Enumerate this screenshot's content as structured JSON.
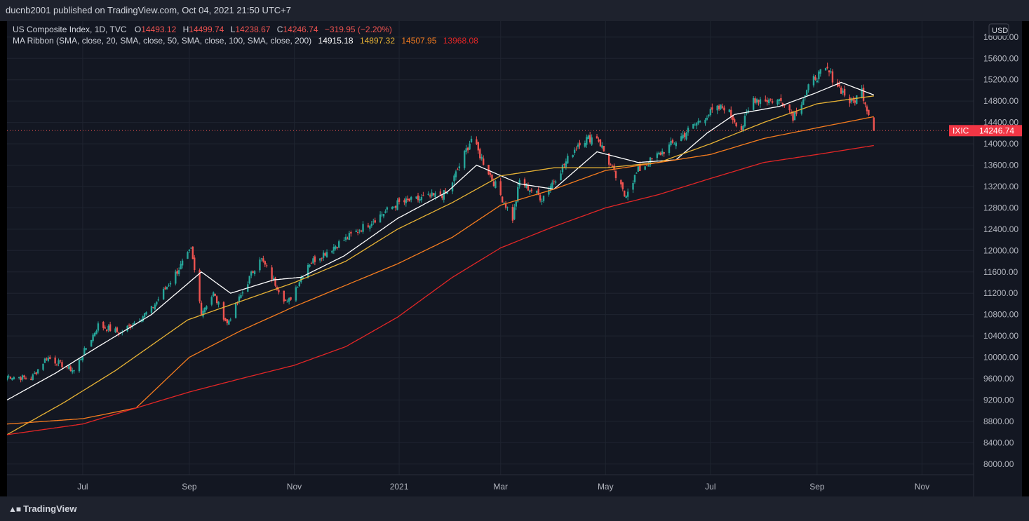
{
  "header": {
    "published": "ducnb2001 published on TradingView.com, Oct 04, 2021 21:50 UTC+7"
  },
  "footer": {
    "brand": "TradingView"
  },
  "legend": {
    "symbol": "US Composite Index, 1D, TVC",
    "o_label": "O",
    "o": "14493.12",
    "h_label": "H",
    "h": "14499.74",
    "l_label": "L",
    "l": "14238.67",
    "c_label": "C",
    "c": "14246.74",
    "change": "−319.95 (−2.20%)",
    "ma_label": "MA Ribbon (SMA, close, 20, SMA, close, 50, SMA, close, 100, SMA, close, 200)",
    "ma_values": [
      "14915.18",
      "14897.32",
      "14507.95",
      "13968.08"
    ]
  },
  "currency": "USD",
  "price_tag": {
    "ticker": "IXIC",
    "value": "14246.74"
  },
  "colors": {
    "background": "#131722",
    "up": "#26a69a",
    "down": "#ef5350",
    "sma20": "#ffffff",
    "sma50": "#e8b335",
    "sma100": "#f57c1f",
    "sma200": "#e32626",
    "axis_text": "#b2b5be",
    "grid": "#1f2430",
    "price_tag_bg": "#f23645"
  },
  "chart_data": {
    "type": "candlestick",
    "title": "US Composite Index, 1D, TVC",
    "ylim": [
      7800,
      16300
    ],
    "y_ticks": [
      "8000.00",
      "8400.00",
      "8800.00",
      "9200.00",
      "9600.00",
      "10000.00",
      "10400.00",
      "10800.00",
      "11200.00",
      "11600.00",
      "12000.00",
      "12400.00",
      "12800.00",
      "13200.00",
      "13600.00",
      "14000.00",
      "14400.00",
      "14800.00",
      "15200.00",
      "15600.00",
      "16000.00"
    ],
    "x_ticks": [
      "Jul",
      "Sep",
      "Nov",
      "2021",
      "Mar",
      "May",
      "Jul",
      "Sep",
      "Nov"
    ],
    "x_tick_dates": [
      "2020-07-01",
      "2020-09-01",
      "2020-11-01",
      "2021-01-01",
      "2021-03-01",
      "2021-05-01",
      "2021-07-01",
      "2021-09-01",
      "2021-11-01"
    ],
    "x_range": [
      "2020-05-18",
      "2021-12-01"
    ],
    "last_close": 14246.74,
    "close_anchors": [
      [
        "2020-05-18",
        9650
      ],
      [
        "2020-06-01",
        9600
      ],
      [
        "2020-06-10",
        10000
      ],
      [
        "2020-06-26",
        9750
      ],
      [
        "2020-07-10",
        10600
      ],
      [
        "2020-07-23",
        10460
      ],
      [
        "2020-08-10",
        10900
      ],
      [
        "2020-09-02",
        12000
      ],
      [
        "2020-09-08",
        10850
      ],
      [
        "2020-09-15",
        11190
      ],
      [
        "2020-09-23",
        10630
      ],
      [
        "2020-10-12",
        11880
      ],
      [
        "2020-10-28",
        11000
      ],
      [
        "2020-11-09",
        11750
      ],
      [
        "2020-11-30",
        12200
      ],
      [
        "2020-12-31",
        12880
      ],
      [
        "2021-01-29",
        13070
      ],
      [
        "2021-02-12",
        14100
      ],
      [
        "2021-03-08",
        12600
      ],
      [
        "2021-03-12",
        13300
      ],
      [
        "2021-03-25",
        12980
      ],
      [
        "2021-04-16",
        14050
      ],
      [
        "2021-04-26",
        14140
      ],
      [
        "2021-05-12",
        13030
      ],
      [
        "2021-05-20",
        13500
      ],
      [
        "2021-06-11",
        14050
      ],
      [
        "2021-06-29",
        14550
      ],
      [
        "2021-07-09",
        14700
      ],
      [
        "2021-07-19",
        14280
      ],
      [
        "2021-07-26",
        14850
      ],
      [
        "2021-08-13",
        14800
      ],
      [
        "2021-08-18",
        14520
      ],
      [
        "2021-08-31",
        15260
      ],
      [
        "2021-09-07",
        15370
      ],
      [
        "2021-09-21",
        14750
      ],
      [
        "2021-09-27",
        15000
      ],
      [
        "2021-10-01",
        14570
      ],
      [
        "2021-10-04",
        14246.74
      ]
    ],
    "sma_anchors": {
      "sma20": [
        [
          "2020-05-18",
          9200
        ],
        [
          "2020-06-15",
          9700
        ],
        [
          "2020-07-10",
          10200
        ],
        [
          "2020-08-10",
          10800
        ],
        [
          "2020-09-08",
          11600
        ],
        [
          "2020-09-25",
          11200
        ],
        [
          "2020-10-20",
          11450
        ],
        [
          "2020-11-05",
          11500
        ],
        [
          "2020-11-30",
          11900
        ],
        [
          "2020-12-31",
          12600
        ],
        [
          "2021-01-29",
          13100
        ],
        [
          "2021-02-15",
          13600
        ],
        [
          "2021-03-12",
          13250
        ],
        [
          "2021-04-01",
          13150
        ],
        [
          "2021-04-26",
          13850
        ],
        [
          "2021-05-20",
          13650
        ],
        [
          "2021-06-11",
          13700
        ],
        [
          "2021-06-29",
          14200
        ],
        [
          "2021-07-15",
          14550
        ],
        [
          "2021-08-10",
          14700
        ],
        [
          "2021-08-31",
          14950
        ],
        [
          "2021-09-15",
          15150
        ],
        [
          "2021-10-04",
          14915
        ]
      ],
      "sma50": [
        [
          "2020-05-18",
          8550
        ],
        [
          "2020-06-20",
          9150
        ],
        [
          "2020-07-20",
          9750
        ],
        [
          "2020-08-31",
          10700
        ],
        [
          "2020-10-01",
          11050
        ],
        [
          "2020-11-01",
          11400
        ],
        [
          "2020-12-01",
          11800
        ],
        [
          "2020-12-31",
          12400
        ],
        [
          "2021-02-01",
          12900
        ],
        [
          "2021-03-01",
          13400
        ],
        [
          "2021-04-01",
          13550
        ],
        [
          "2021-05-01",
          13550
        ],
        [
          "2021-06-01",
          13650
        ],
        [
          "2021-07-01",
          14000
        ],
        [
          "2021-08-01",
          14400
        ],
        [
          "2021-09-01",
          14750
        ],
        [
          "2021-10-04",
          14897
        ]
      ],
      "sma100": [
        [
          "2020-05-18",
          8750
        ],
        [
          "2020-07-01",
          8850
        ],
        [
          "2020-08-01",
          9050
        ],
        [
          "2020-09-01",
          10000
        ],
        [
          "2020-10-01",
          10500
        ],
        [
          "2020-11-01",
          10950
        ],
        [
          "2020-12-01",
          11350
        ],
        [
          "2020-12-31",
          11750
        ],
        [
          "2021-02-01",
          12250
        ],
        [
          "2021-03-01",
          12850
        ],
        [
          "2021-04-01",
          13150
        ],
        [
          "2021-05-01",
          13500
        ],
        [
          "2021-06-01",
          13650
        ],
        [
          "2021-07-01",
          13800
        ],
        [
          "2021-08-01",
          14100
        ],
        [
          "2021-09-01",
          14300
        ],
        [
          "2021-10-04",
          14508
        ]
      ],
      "sma200": [
        [
          "2020-05-18",
          8550
        ],
        [
          "2020-07-01",
          8750
        ],
        [
          "2020-08-01",
          9050
        ],
        [
          "2020-09-01",
          9350
        ],
        [
          "2020-10-01",
          9600
        ],
        [
          "2020-11-01",
          9850
        ],
        [
          "2020-12-01",
          10200
        ],
        [
          "2020-12-31",
          10750
        ],
        [
          "2021-02-01",
          11500
        ],
        [
          "2021-03-01",
          12050
        ],
        [
          "2021-04-01",
          12450
        ],
        [
          "2021-05-01",
          12800
        ],
        [
          "2021-06-01",
          13050
        ],
        [
          "2021-07-01",
          13350
        ],
        [
          "2021-08-01",
          13650
        ],
        [
          "2021-09-01",
          13800
        ],
        [
          "2021-10-04",
          13968
        ]
      ]
    },
    "series": [
      {
        "name": "20",
        "key": "sma20"
      },
      {
        "name": "50",
        "key": "sma50"
      },
      {
        "name": "100",
        "key": "sma100"
      },
      {
        "name": "200",
        "key": "sma200"
      }
    ],
    "grid": true
  }
}
